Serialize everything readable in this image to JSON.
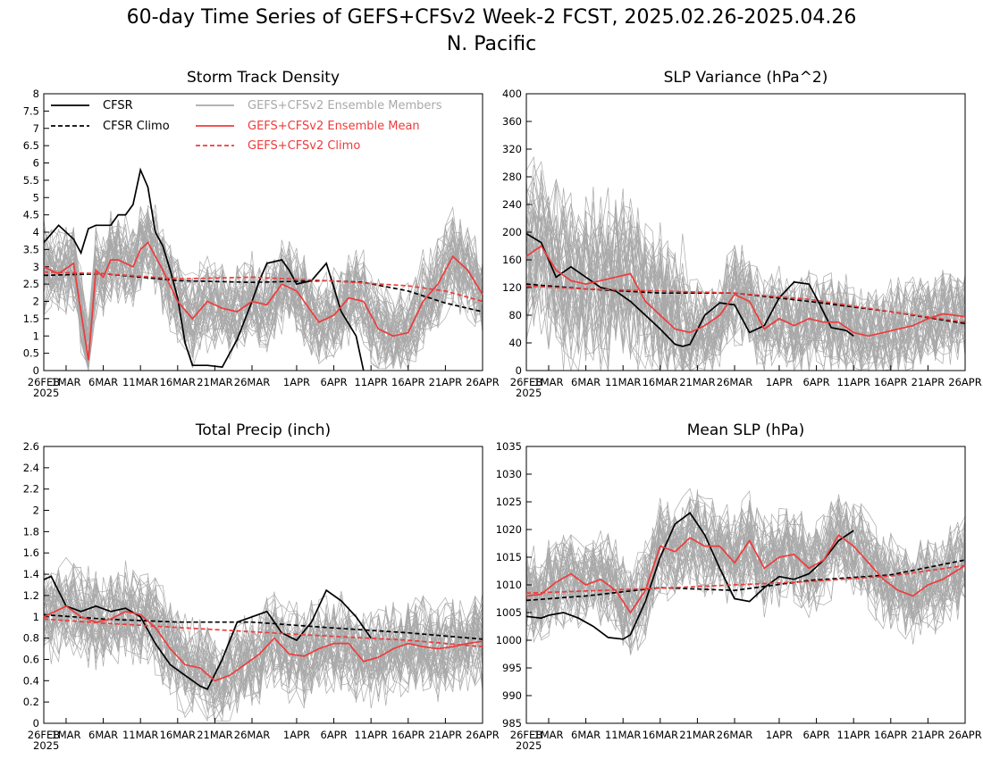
{
  "figure": {
    "title_line1": "60-day Time Series of GEFS+CFSv2 Week-2 FCST, 2025.02.26-2025.04.26",
    "title_line2": "N. Pacific"
  },
  "colors": {
    "observed": "#000000",
    "member": "#a9a9a9",
    "mean": "#ee3b3b"
  },
  "chart_data": [
    {
      "type": "line",
      "title": "Storm Track Density",
      "ylim": [
        0,
        8
      ],
      "yticks": [
        0,
        0.5,
        1,
        1.5,
        2,
        2.5,
        3,
        3.5,
        4,
        4.5,
        5,
        5.5,
        6,
        6.5,
        7,
        7.5,
        8
      ],
      "xticks": [
        "26FEB 2025",
        "1MAR",
        "6MAR",
        "11MAR",
        "16MAR",
        "21MAR",
        "26MAR",
        "1APR",
        "6APR",
        "11APR",
        "16APR",
        "21APR",
        "26APR"
      ],
      "xlim": [
        "2025-02-26",
        "2025-04-26"
      ],
      "legend": {
        "placement": "top-left",
        "entries": [
          "CFSR",
          "CFSR Climo",
          "GEFS+CFSv2 Ensemble Members",
          "GEFS+CFSv2 Ensemble Mean",
          "GEFS+CFSv2 Climo"
        ]
      },
      "series": [
        {
          "name": "CFSR",
          "style": "solid",
          "color": "#000000",
          "x": [
            "2025-02-26",
            "2025-02-28",
            "2025-03-02",
            "2025-03-03",
            "2025-03-04",
            "2025-03-05",
            "2025-03-07",
            "2025-03-08",
            "2025-03-09",
            "2025-03-10",
            "2025-03-11",
            "2025-03-12",
            "2025-03-13",
            "2025-03-14",
            "2025-03-15",
            "2025-03-16",
            "2025-03-17",
            "2025-03-18",
            "2025-03-20",
            "2025-03-22",
            "2025-03-24",
            "2025-03-26",
            "2025-03-27",
            "2025-03-28",
            "2025-03-30",
            "2025-03-31",
            "2025-04-01",
            "2025-04-03",
            "2025-04-05",
            "2025-04-07",
            "2025-04-09",
            "2025-04-10"
          ],
          "y": [
            3.7,
            4.2,
            3.8,
            3.4,
            4.1,
            4.2,
            4.2,
            4.5,
            4.5,
            4.8,
            5.8,
            5.3,
            4.0,
            3.6,
            2.9,
            2.1,
            0.8,
            0.15,
            0.15,
            0.1,
            0.9,
            2.0,
            2.6,
            3.1,
            3.2,
            2.9,
            2.5,
            2.6,
            3.1,
            1.7,
            1.0,
            0.0
          ]
        },
        {
          "name": "CFSR Climo",
          "style": "dashed",
          "color": "#000000",
          "x": [
            "2025-02-26",
            "2025-03-06",
            "2025-03-16",
            "2025-03-26",
            "2025-04-05",
            "2025-04-10",
            "2025-04-16",
            "2025-04-21",
            "2025-04-26"
          ],
          "y": [
            2.75,
            2.8,
            2.6,
            2.55,
            2.6,
            2.55,
            2.3,
            1.95,
            1.7
          ]
        },
        {
          "name": "GEFS+CFSv2 Ensemble Mean",
          "style": "solid",
          "color": "#ee3b3b",
          "x": [
            "2025-02-26",
            "2025-02-28",
            "2025-03-02",
            "2025-03-04",
            "2025-03-05",
            "2025-03-06",
            "2025-03-07",
            "2025-03-08",
            "2025-03-10",
            "2025-03-11",
            "2025-03-12",
            "2025-03-14",
            "2025-03-16",
            "2025-03-18",
            "2025-03-20",
            "2025-03-22",
            "2025-03-24",
            "2025-03-26",
            "2025-03-28",
            "2025-03-30",
            "2025-04-01",
            "2025-04-02",
            "2025-04-04",
            "2025-04-06",
            "2025-04-08",
            "2025-04-10",
            "2025-04-12",
            "2025-04-14",
            "2025-04-16",
            "2025-04-18",
            "2025-04-20",
            "2025-04-22",
            "2025-04-24",
            "2025-04-26"
          ],
          "y": [
            3.0,
            2.8,
            3.1,
            0.3,
            2.9,
            2.7,
            3.2,
            3.2,
            3.0,
            3.5,
            3.7,
            2.9,
            2.0,
            1.5,
            2.0,
            1.8,
            1.7,
            2.0,
            1.9,
            2.5,
            2.3,
            2.0,
            1.4,
            1.6,
            2.1,
            2.0,
            1.2,
            1.0,
            1.1,
            2.0,
            2.5,
            3.3,
            2.9,
            2.2
          ]
        },
        {
          "name": "GEFS+CFSv2 Climo",
          "style": "dashed",
          "color": "#ee3b3b",
          "x": [
            "2025-02-26",
            "2025-03-06",
            "2025-03-16",
            "2025-03-26",
            "2025-04-05",
            "2025-04-16",
            "2025-04-21",
            "2025-04-26"
          ],
          "y": [
            2.85,
            2.8,
            2.65,
            2.7,
            2.6,
            2.45,
            2.3,
            2.0
          ]
        }
      ]
    },
    {
      "type": "line",
      "title": "SLP Variance (hPa^2)",
      "ylim": [
        0,
        400
      ],
      "yticks": [
        0,
        40,
        80,
        120,
        160,
        200,
        240,
        280,
        320,
        360,
        400
      ],
      "xticks": [
        "26FEB 2025",
        "1MAR",
        "6MAR",
        "11MAR",
        "16MAR",
        "21MAR",
        "26MAR",
        "1APR",
        "6APR",
        "11APR",
        "16APR",
        "21APR",
        "26APR"
      ],
      "xlim": [
        "2025-02-26",
        "2025-04-26"
      ],
      "series": [
        {
          "name": "CFSR",
          "style": "solid",
          "color": "#000000",
          "x": [
            "2025-02-26",
            "2025-02-28",
            "2025-03-02",
            "2025-03-04",
            "2025-03-06",
            "2025-03-08",
            "2025-03-10",
            "2025-03-12",
            "2025-03-14",
            "2025-03-16",
            "2025-03-18",
            "2025-03-19",
            "2025-03-20",
            "2025-03-22",
            "2025-03-24",
            "2025-03-26",
            "2025-03-27",
            "2025-03-28",
            "2025-03-30",
            "2025-04-01",
            "2025-04-03",
            "2025-04-05",
            "2025-04-06",
            "2025-04-08",
            "2025-04-10",
            "2025-04-11"
          ],
          "y": [
            198,
            185,
            135,
            150,
            135,
            120,
            115,
            100,
            80,
            60,
            38,
            35,
            38,
            80,
            98,
            95,
            75,
            55,
            65,
            105,
            128,
            125,
            105,
            62,
            58,
            50
          ]
        },
        {
          "name": "CFSR Climo",
          "style": "dashed",
          "color": "#000000",
          "x": [
            "2025-02-26",
            "2025-03-06",
            "2025-03-16",
            "2025-03-26",
            "2025-04-05",
            "2025-04-16",
            "2025-04-26"
          ],
          "y": [
            125,
            118,
            112,
            112,
            100,
            85,
            68
          ]
        },
        {
          "name": "GEFS+CFSv2 Ensemble Mean",
          "style": "solid",
          "color": "#ee3b3b",
          "x": [
            "2025-02-26",
            "2025-02-28",
            "2025-03-02",
            "2025-03-04",
            "2025-03-06",
            "2025-03-08",
            "2025-03-10",
            "2025-03-12",
            "2025-03-14",
            "2025-03-16",
            "2025-03-18",
            "2025-03-20",
            "2025-03-22",
            "2025-03-24",
            "2025-03-26",
            "2025-03-28",
            "2025-03-30",
            "2025-04-01",
            "2025-04-03",
            "2025-04-05",
            "2025-04-07",
            "2025-04-09",
            "2025-04-11",
            "2025-04-13",
            "2025-04-15",
            "2025-04-17",
            "2025-04-19",
            "2025-04-21",
            "2025-04-23",
            "2025-04-26"
          ],
          "y": [
            165,
            180,
            145,
            130,
            125,
            130,
            135,
            140,
            100,
            80,
            60,
            55,
            65,
            80,
            110,
            100,
            60,
            75,
            65,
            75,
            70,
            70,
            55,
            50,
            55,
            60,
            65,
            75,
            82,
            78
          ]
        },
        {
          "name": "GEFS+CFSv2 Climo",
          "style": "dashed",
          "color": "#ee3b3b",
          "x": [
            "2025-02-26",
            "2025-03-06",
            "2025-03-16",
            "2025-03-26",
            "2025-04-05",
            "2025-04-16",
            "2025-04-26"
          ],
          "y": [
            122,
            118,
            115,
            112,
            103,
            85,
            70
          ]
        }
      ]
    },
    {
      "type": "line",
      "title": "Total Precip (inch)",
      "ylim": [
        0,
        2.6
      ],
      "yticks": [
        0,
        0.2,
        0.4,
        0.6,
        0.8,
        1,
        1.2,
        1.4,
        1.6,
        1.8,
        2,
        2.2,
        2.4,
        2.6
      ],
      "xticks": [
        "26FEB 2025",
        "1MAR",
        "6MAR",
        "11MAR",
        "16MAR",
        "21MAR",
        "26MAR",
        "1APR",
        "6APR",
        "11APR",
        "16APR",
        "21APR",
        "26APR"
      ],
      "xlim": [
        "2025-02-26",
        "2025-04-26"
      ],
      "series": [
        {
          "name": "CFSR",
          "style": "solid",
          "color": "#000000",
          "x": [
            "2025-02-26",
            "2025-02-27",
            "2025-03-01",
            "2025-03-03",
            "2025-03-05",
            "2025-03-07",
            "2025-03-09",
            "2025-03-11",
            "2025-03-13",
            "2025-03-15",
            "2025-03-17",
            "2025-03-19",
            "2025-03-20",
            "2025-03-22",
            "2025-03-24",
            "2025-03-26",
            "2025-03-28",
            "2025-03-30",
            "2025-04-01",
            "2025-04-03",
            "2025-04-05",
            "2025-04-07",
            "2025-04-09",
            "2025-04-11"
          ],
          "y": [
            1.35,
            1.38,
            1.1,
            1.05,
            1.1,
            1.05,
            1.08,
            1.0,
            0.75,
            0.55,
            0.45,
            0.35,
            0.32,
            0.6,
            0.95,
            1.0,
            1.05,
            0.85,
            0.78,
            0.95,
            1.25,
            1.15,
            1.0,
            0.8
          ]
        },
        {
          "name": "CFSR Climo",
          "style": "dashed",
          "color": "#000000",
          "x": [
            "2025-02-26",
            "2025-03-06",
            "2025-03-16",
            "2025-03-26",
            "2025-04-05",
            "2025-04-16",
            "2025-04-26"
          ],
          "y": [
            1.02,
            0.98,
            0.95,
            0.95,
            0.9,
            0.85,
            0.79
          ]
        },
        {
          "name": "GEFS+CFSv2 Ensemble Mean",
          "style": "solid",
          "color": "#ee3b3b",
          "x": [
            "2025-02-26",
            "2025-03-01",
            "2025-03-03",
            "2025-03-05",
            "2025-03-07",
            "2025-03-09",
            "2025-03-11",
            "2025-03-13",
            "2025-03-15",
            "2025-03-17",
            "2025-03-19",
            "2025-03-21",
            "2025-03-23",
            "2025-03-25",
            "2025-03-27",
            "2025-03-29",
            "2025-03-31",
            "2025-04-02",
            "2025-04-04",
            "2025-04-06",
            "2025-04-08",
            "2025-04-10",
            "2025-04-12",
            "2025-04-14",
            "2025-04-16",
            "2025-04-18",
            "2025-04-20",
            "2025-04-22",
            "2025-04-24",
            "2025-04-26"
          ],
          "y": [
            1.0,
            1.1,
            1.0,
            0.95,
            0.98,
            1.05,
            1.02,
            0.9,
            0.7,
            0.55,
            0.52,
            0.4,
            0.45,
            0.55,
            0.65,
            0.8,
            0.65,
            0.63,
            0.7,
            0.75,
            0.75,
            0.58,
            0.62,
            0.7,
            0.75,
            0.72,
            0.7,
            0.72,
            0.75,
            0.77
          ]
        },
        {
          "name": "GEFS+CFSv2 Climo",
          "style": "dashed",
          "color": "#ee3b3b",
          "x": [
            "2025-02-26",
            "2025-03-06",
            "2025-03-16",
            "2025-03-26",
            "2025-04-05",
            "2025-04-16",
            "2025-04-26"
          ],
          "y": [
            0.98,
            0.94,
            0.9,
            0.86,
            0.82,
            0.78,
            0.72
          ]
        }
      ]
    },
    {
      "type": "line",
      "title": "Mean SLP (hPa)",
      "ylim": [
        985,
        1035
      ],
      "yticks": [
        985,
        990,
        995,
        1000,
        1005,
        1010,
        1015,
        1020,
        1025,
        1030,
        1035
      ],
      "xticks": [
        "26FEB 2025",
        "1MAR",
        "6MAR",
        "11MAR",
        "16MAR",
        "21MAR",
        "26MAR",
        "1APR",
        "6APR",
        "11APR",
        "16APR",
        "21APR",
        "26APR"
      ],
      "xlim": [
        "2025-02-26",
        "2025-04-26"
      ],
      "series": [
        {
          "name": "CFSR",
          "style": "solid",
          "color": "#000000",
          "x": [
            "2025-02-26",
            "2025-02-28",
            "2025-03-01",
            "2025-03-03",
            "2025-03-05",
            "2025-03-07",
            "2025-03-09",
            "2025-03-11",
            "2025-03-12",
            "2025-03-14",
            "2025-03-16",
            "2025-03-18",
            "2025-03-20",
            "2025-03-22",
            "2025-03-24",
            "2025-03-26",
            "2025-03-28",
            "2025-03-30",
            "2025-04-01",
            "2025-04-03",
            "2025-04-05",
            "2025-04-07",
            "2025-04-09",
            "2025-04-11"
          ],
          "y": [
            1004.3,
            1004.0,
            1004.5,
            1005.0,
            1004.0,
            1002.5,
            1000.5,
            1000.2,
            1001.0,
            1007.0,
            1015.0,
            1021.0,
            1023.0,
            1019.0,
            1013.0,
            1007.5,
            1007.0,
            1009.5,
            1011.5,
            1011.0,
            1012.0,
            1014.5,
            1018.0,
            1019.8
          ]
        },
        {
          "name": "CFSR Climo",
          "style": "dashed",
          "color": "#000000",
          "x": [
            "2025-02-26",
            "2025-03-06",
            "2025-03-16",
            "2025-03-26",
            "2025-04-05",
            "2025-04-16",
            "2025-04-26"
          ],
          "y": [
            1007.2,
            1008.0,
            1009.5,
            1009.0,
            1010.8,
            1011.8,
            1014.5
          ]
        },
        {
          "name": "GEFS+CFSv2 Ensemble Mean",
          "style": "solid",
          "color": "#ee3b3b",
          "x": [
            "2025-02-26",
            "2025-02-28",
            "2025-03-02",
            "2025-03-04",
            "2025-03-06",
            "2025-03-08",
            "2025-03-10",
            "2025-03-12",
            "2025-03-14",
            "2025-03-16",
            "2025-03-18",
            "2025-03-20",
            "2025-03-22",
            "2025-03-24",
            "2025-03-26",
            "2025-03-28",
            "2025-03-30",
            "2025-04-01",
            "2025-04-03",
            "2025-04-05",
            "2025-04-07",
            "2025-04-09",
            "2025-04-11",
            "2025-04-13",
            "2025-04-15",
            "2025-04-17",
            "2025-04-19",
            "2025-04-21",
            "2025-04-23",
            "2025-04-26"
          ],
          "y": [
            1008.0,
            1008.3,
            1010.5,
            1012.0,
            1010.0,
            1011.0,
            1009.0,
            1005.0,
            1009.0,
            1017.0,
            1016.0,
            1018.5,
            1017.0,
            1017.0,
            1014.0,
            1018.0,
            1013.0,
            1015.0,
            1015.5,
            1013.0,
            1014.5,
            1019.0,
            1017.0,
            1014.0,
            1011.0,
            1009.0,
            1008.0,
            1010.0,
            1011.0,
            1013.5
          ]
        },
        {
          "name": "GEFS+CFSv2 Climo",
          "style": "dashed",
          "color": "#ee3b3b",
          "x": [
            "2025-02-26",
            "2025-03-06",
            "2025-03-16",
            "2025-03-26",
            "2025-04-05",
            "2025-04-16",
            "2025-04-26"
          ],
          "y": [
            1008.5,
            1008.9,
            1009.4,
            1010.0,
            1010.6,
            1011.6,
            1013.5
          ]
        }
      ]
    }
  ]
}
